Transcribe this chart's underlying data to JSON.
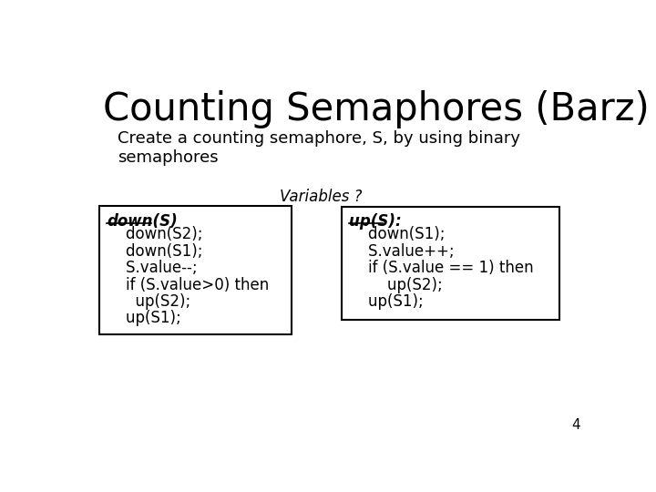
{
  "title": "Counting Semaphores (Barz)",
  "subtitle": "Create a counting semaphore, S, by using binary\nsemaphores",
  "variables_label": "Variables ?",
  "bg_color": "#ffffff",
  "title_fontsize": 30,
  "subtitle_fontsize": 13,
  "variables_fontsize": 12,
  "code_fontsize": 12,
  "page_number": "4",
  "box_left_title": "down(S)",
  "box_left_lines": [
    "    down(S2);",
    "    down(S1);",
    "    S.value--;",
    "    if (S.value>0) then",
    "      up(S2);",
    "    up(S1);"
  ],
  "box_right_title": "up(S):",
  "box_right_lines": [
    "    down(S1);",
    "    S.value++;",
    "    if (S.value == 1) then",
    "        up(S2);",
    "    up(S1);"
  ]
}
